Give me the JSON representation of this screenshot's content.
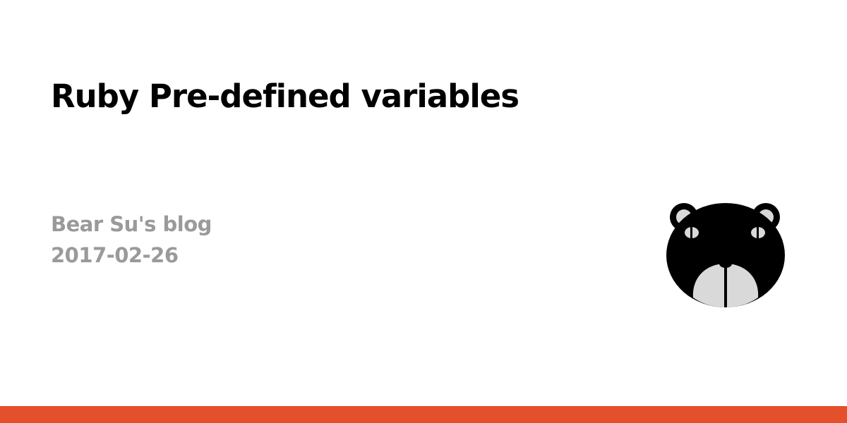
{
  "post": {
    "title": "Ruby Pre-defined variables",
    "site_name": "Bear Su's blog",
    "date": "2017-02-26"
  },
  "logo": {
    "icon": "bear-face-icon"
  },
  "colors": {
    "background": "#ffffff",
    "title": "#000000",
    "meta": "#9a9a9a",
    "accent_bar": "#e4502a",
    "bear_face": "#000000",
    "bear_muzzle": "#d9d9d9"
  }
}
